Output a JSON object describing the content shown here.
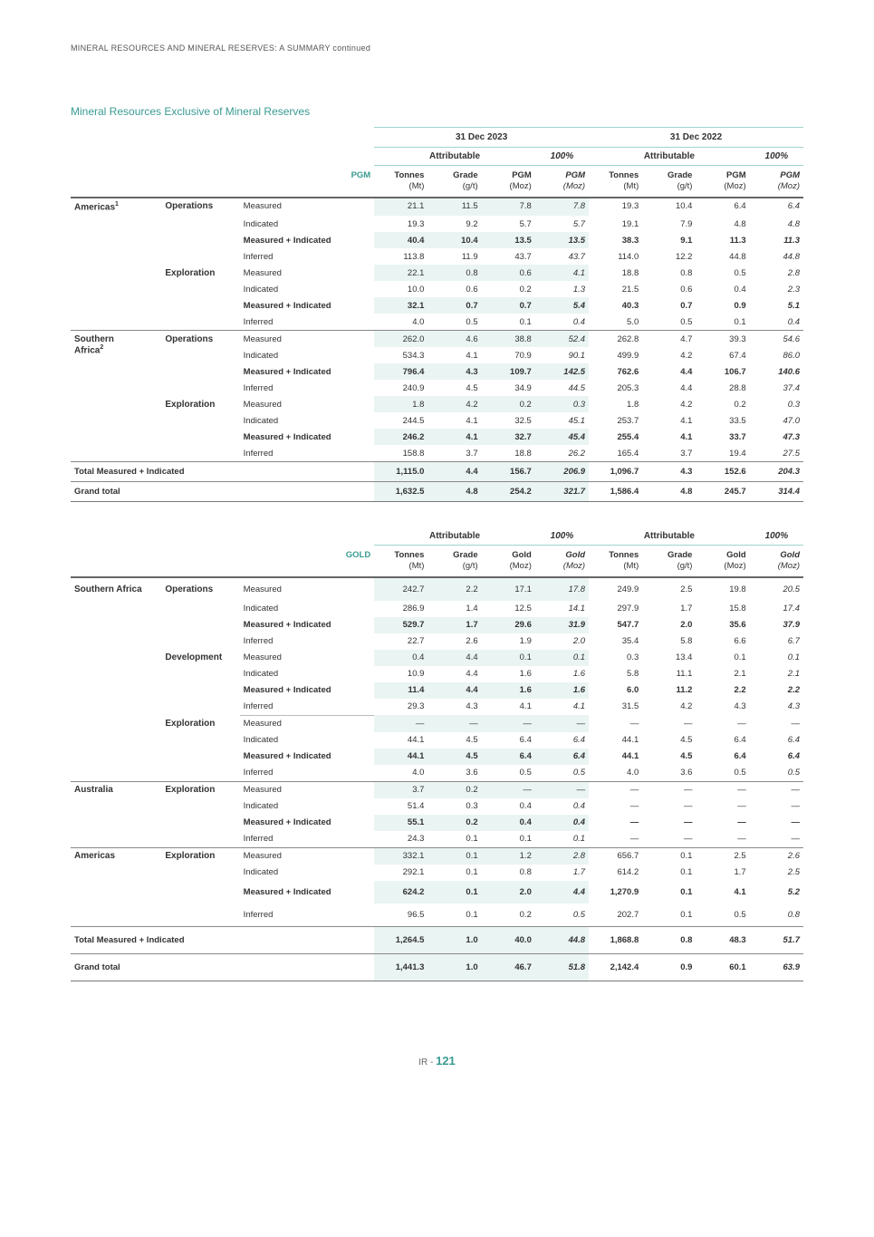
{
  "page_header": "MINERAL RESOURCES AND MINERAL RESERVES: A SUMMARY continued",
  "section_title": "Mineral Resources Exclusive of Mineral Reserves",
  "colors": {
    "accent": "#3a9b92",
    "shade": "#eaf4f3",
    "border_light": "#9fd4cf",
    "border_dark": "#666666",
    "text": "#333333",
    "background": "#ffffff"
  },
  "date_headers": {
    "y2023": "31 Dec 2023",
    "y2022": "31 Dec 2022"
  },
  "attr_headers": {
    "attributable": "Attributable",
    "pct100": "100%"
  },
  "mineral_unit": {
    "tonnes_label": "Tonnes",
    "tonnes_sub": "(Mt)",
    "grade_label": "Grade",
    "grade_sub": "(g/t)",
    "moz_sub": "(Moz)"
  },
  "pgm": {
    "label": "PGM",
    "moz_label": "PGM",
    "moz_label_italic": "PGM",
    "rows": [
      {
        "region": "Americas",
        "footnote": "1",
        "stage": "Operations",
        "class": "Measured",
        "shade": true,
        "v": [
          "21.1",
          "11.5",
          "7.8",
          "7.8",
          "19.3",
          "10.4",
          "6.4",
          "6.4"
        ],
        "section_start": true,
        "bold": false
      },
      {
        "class": "Indicated",
        "v": [
          "19.3",
          "9.2",
          "5.7",
          "5.7",
          "19.1",
          "7.9",
          "4.8",
          "4.8"
        ]
      },
      {
        "class": "Measured + Indicated",
        "shade": true,
        "bold": true,
        "v": [
          "40.4",
          "10.4",
          "13.5",
          "13.5",
          "38.3",
          "9.1",
          "11.3",
          "11.3"
        ]
      },
      {
        "class": "Inferred",
        "v": [
          "113.8",
          "11.9",
          "43.7",
          "43.7",
          "114.0",
          "12.2",
          "44.8",
          "44.8"
        ]
      },
      {
        "stage": "Exploration",
        "class": "Measured",
        "shade": true,
        "v": [
          "22.1",
          "0.8",
          "0.6",
          "4.1",
          "18.8",
          "0.8",
          "0.5",
          "2.8"
        ]
      },
      {
        "class": "Indicated",
        "v": [
          "10.0",
          "0.6",
          "0.2",
          "1.3",
          "21.5",
          "0.6",
          "0.4",
          "2.3"
        ]
      },
      {
        "class": "Measured + Indicated",
        "shade": true,
        "bold": true,
        "v": [
          "32.1",
          "0.7",
          "0.7",
          "5.4",
          "40.3",
          "0.7",
          "0.9",
          "5.1"
        ]
      },
      {
        "class": "Inferred",
        "v": [
          "4.0",
          "0.5",
          "0.1",
          "0.4",
          "5.0",
          "0.5",
          "0.1",
          "0.4"
        ]
      },
      {
        "region": "Southern",
        "region2": "Africa",
        "footnote": "2",
        "stage": "Operations",
        "class": "Measured",
        "shade": true,
        "section_start": true,
        "v": [
          "262.0",
          "4.6",
          "38.8",
          "52.4",
          "262.8",
          "4.7",
          "39.3",
          "54.6"
        ]
      },
      {
        "class": "Indicated",
        "v": [
          "534.3",
          "4.1",
          "70.9",
          "90.1",
          "499.9",
          "4.2",
          "67.4",
          "86.0"
        ]
      },
      {
        "class": "Measured + Indicated",
        "shade": true,
        "bold": true,
        "v": [
          "796.4",
          "4.3",
          "109.7",
          "142.5",
          "762.6",
          "4.4",
          "106.7",
          "140.6"
        ]
      },
      {
        "class": "Inferred",
        "v": [
          "240.9",
          "4.5",
          "34.9",
          "44.5",
          "205.3",
          "4.4",
          "28.8",
          "37.4"
        ]
      },
      {
        "stage": "Exploration",
        "class": "Measured",
        "shade": true,
        "v": [
          "1.8",
          "4.2",
          "0.2",
          "0.3",
          "1.8",
          "4.2",
          "0.2",
          "0.3"
        ]
      },
      {
        "class": "Indicated",
        "v": [
          "244.5",
          "4.1",
          "32.5",
          "45.1",
          "253.7",
          "4.1",
          "33.5",
          "47.0"
        ]
      },
      {
        "class": "Measured + Indicated",
        "shade": true,
        "bold": true,
        "v": [
          "246.2",
          "4.1",
          "32.7",
          "45.4",
          "255.4",
          "4.1",
          "33.7",
          "47.3"
        ]
      },
      {
        "class": "Inferred",
        "v": [
          "158.8",
          "3.7",
          "18.8",
          "26.2",
          "165.4",
          "3.7",
          "19.4",
          "27.5"
        ]
      }
    ],
    "totals": {
      "label": "Total Measured + Indicated",
      "v": [
        "1,115.0",
        "4.4",
        "156.7",
        "206.9",
        "1,096.7",
        "4.3",
        "152.6",
        "204.3"
      ]
    },
    "grand": {
      "label": "Grand total",
      "v": [
        "1,632.5",
        "4.8",
        "254.2",
        "321.7",
        "1,586.4",
        "4.8",
        "245.7",
        "314.4"
      ]
    }
  },
  "gold": {
    "label": "GOLD",
    "moz_label": "Gold",
    "moz_label_italic": "Gold",
    "rows": [
      {
        "region": "Southern Africa",
        "stage": "Operations",
        "class": "Measured",
        "shade": true,
        "section_start": true,
        "spaced": true,
        "v": [
          "242.7",
          "2.2",
          "17.1",
          "17.8",
          "249.9",
          "2.5",
          "19.8",
          "20.5"
        ]
      },
      {
        "class": "Indicated",
        "v": [
          "286.9",
          "1.4",
          "12.5",
          "14.1",
          "297.9",
          "1.7",
          "15.8",
          "17.4"
        ]
      },
      {
        "class": "Measured + Indicated",
        "shade": true,
        "bold": true,
        "v": [
          "529.7",
          "1.7",
          "29.6",
          "31.9",
          "547.7",
          "2.0",
          "35.6",
          "37.9"
        ]
      },
      {
        "class": "Inferred",
        "v": [
          "22.7",
          "2.6",
          "1.9",
          "2.0",
          "35.4",
          "5.8",
          "6.6",
          "6.7"
        ]
      },
      {
        "stage": "Development",
        "class": "Measured",
        "shade": true,
        "v": [
          "0.4",
          "4.4",
          "0.1",
          "0.1",
          "0.3",
          "13.4",
          "0.1",
          "0.1"
        ]
      },
      {
        "class": "Indicated",
        "v": [
          "10.9",
          "4.4",
          "1.6",
          "1.6",
          "5.8",
          "11.1",
          "2.1",
          "2.1"
        ]
      },
      {
        "class": "Measured + Indicated",
        "shade": true,
        "bold": true,
        "v": [
          "11.4",
          "4.4",
          "1.6",
          "1.6",
          "6.0",
          "11.2",
          "2.2",
          "2.2"
        ]
      },
      {
        "class": "Inferred",
        "class_underline": true,
        "v": [
          "29.3",
          "4.3",
          "4.1",
          "4.1",
          "31.5",
          "4.2",
          "4.3",
          "4.3"
        ]
      },
      {
        "stage": "Exploration",
        "class": "Measured",
        "shade": true,
        "v": [
          "—",
          "—",
          "—",
          "—",
          "—",
          "—",
          "—",
          "—"
        ]
      },
      {
        "class": "Indicated",
        "v": [
          "44.1",
          "4.5",
          "6.4",
          "6.4",
          "44.1",
          "4.5",
          "6.4",
          "6.4"
        ]
      },
      {
        "class": "Measured + Indicated",
        "shade": true,
        "bold": true,
        "v": [
          "44.1",
          "4.5",
          "6.4",
          "6.4",
          "44.1",
          "4.5",
          "6.4",
          "6.4"
        ]
      },
      {
        "class": "Inferred",
        "v": [
          "4.0",
          "3.6",
          "0.5",
          "0.5",
          "4.0",
          "3.6",
          "0.5",
          "0.5"
        ]
      },
      {
        "region": "Australia",
        "stage": "Exploration",
        "class": "Measured",
        "shade": true,
        "section_start": true,
        "v": [
          "3.7",
          "0.2",
          "—",
          "—",
          "—",
          "—",
          "—",
          "—"
        ]
      },
      {
        "class": "Indicated",
        "v": [
          "51.4",
          "0.3",
          "0.4",
          "0.4",
          "—",
          "—",
          "—",
          "—"
        ]
      },
      {
        "class": "Measured + Indicated",
        "shade": true,
        "bold": true,
        "v": [
          "55.1",
          "0.2",
          "0.4",
          "0.4",
          "—",
          "—",
          "—",
          "—"
        ]
      },
      {
        "class": "Inferred",
        "v": [
          "24.3",
          "0.1",
          "0.1",
          "0.1",
          "—",
          "—",
          "—",
          "—"
        ]
      },
      {
        "region": "Americas",
        "stage": "Exploration",
        "class": "Measured",
        "shade": true,
        "section_start": true,
        "v": [
          "332.1",
          "0.1",
          "1.2",
          "2.8",
          "656.7",
          "0.1",
          "2.5",
          "2.6"
        ]
      },
      {
        "class": "Indicated",
        "v": [
          "292.1",
          "0.1",
          "0.8",
          "1.7",
          "614.2",
          "0.1",
          "1.7",
          "2.5"
        ]
      },
      {
        "class": "Measured + Indicated",
        "shade": true,
        "bold": true,
        "spaced": true,
        "v": [
          "624.2",
          "0.1",
          "2.0",
          "4.4",
          "1,270.9",
          "0.1",
          "4.1",
          "5.2"
        ]
      },
      {
        "class": "Inferred",
        "spaced": true,
        "v": [
          "96.5",
          "0.1",
          "0.2",
          "0.5",
          "202.7",
          "0.1",
          "0.5",
          "0.8"
        ]
      }
    ],
    "totals": {
      "label": "Total Measured + Indicated",
      "spaced": true,
      "v": [
        "1,264.5",
        "1.0",
        "40.0",
        "44.8",
        "1,868.8",
        "0.8",
        "48.3",
        "51.7"
      ]
    },
    "grand": {
      "label": "Grand total",
      "spaced": true,
      "v": [
        "1,441.3",
        "1.0",
        "46.7",
        "51.8",
        "2,142.4",
        "0.9",
        "60.1",
        "63.9"
      ]
    }
  },
  "footer": {
    "prefix": "IR - ",
    "page_number": "121"
  }
}
